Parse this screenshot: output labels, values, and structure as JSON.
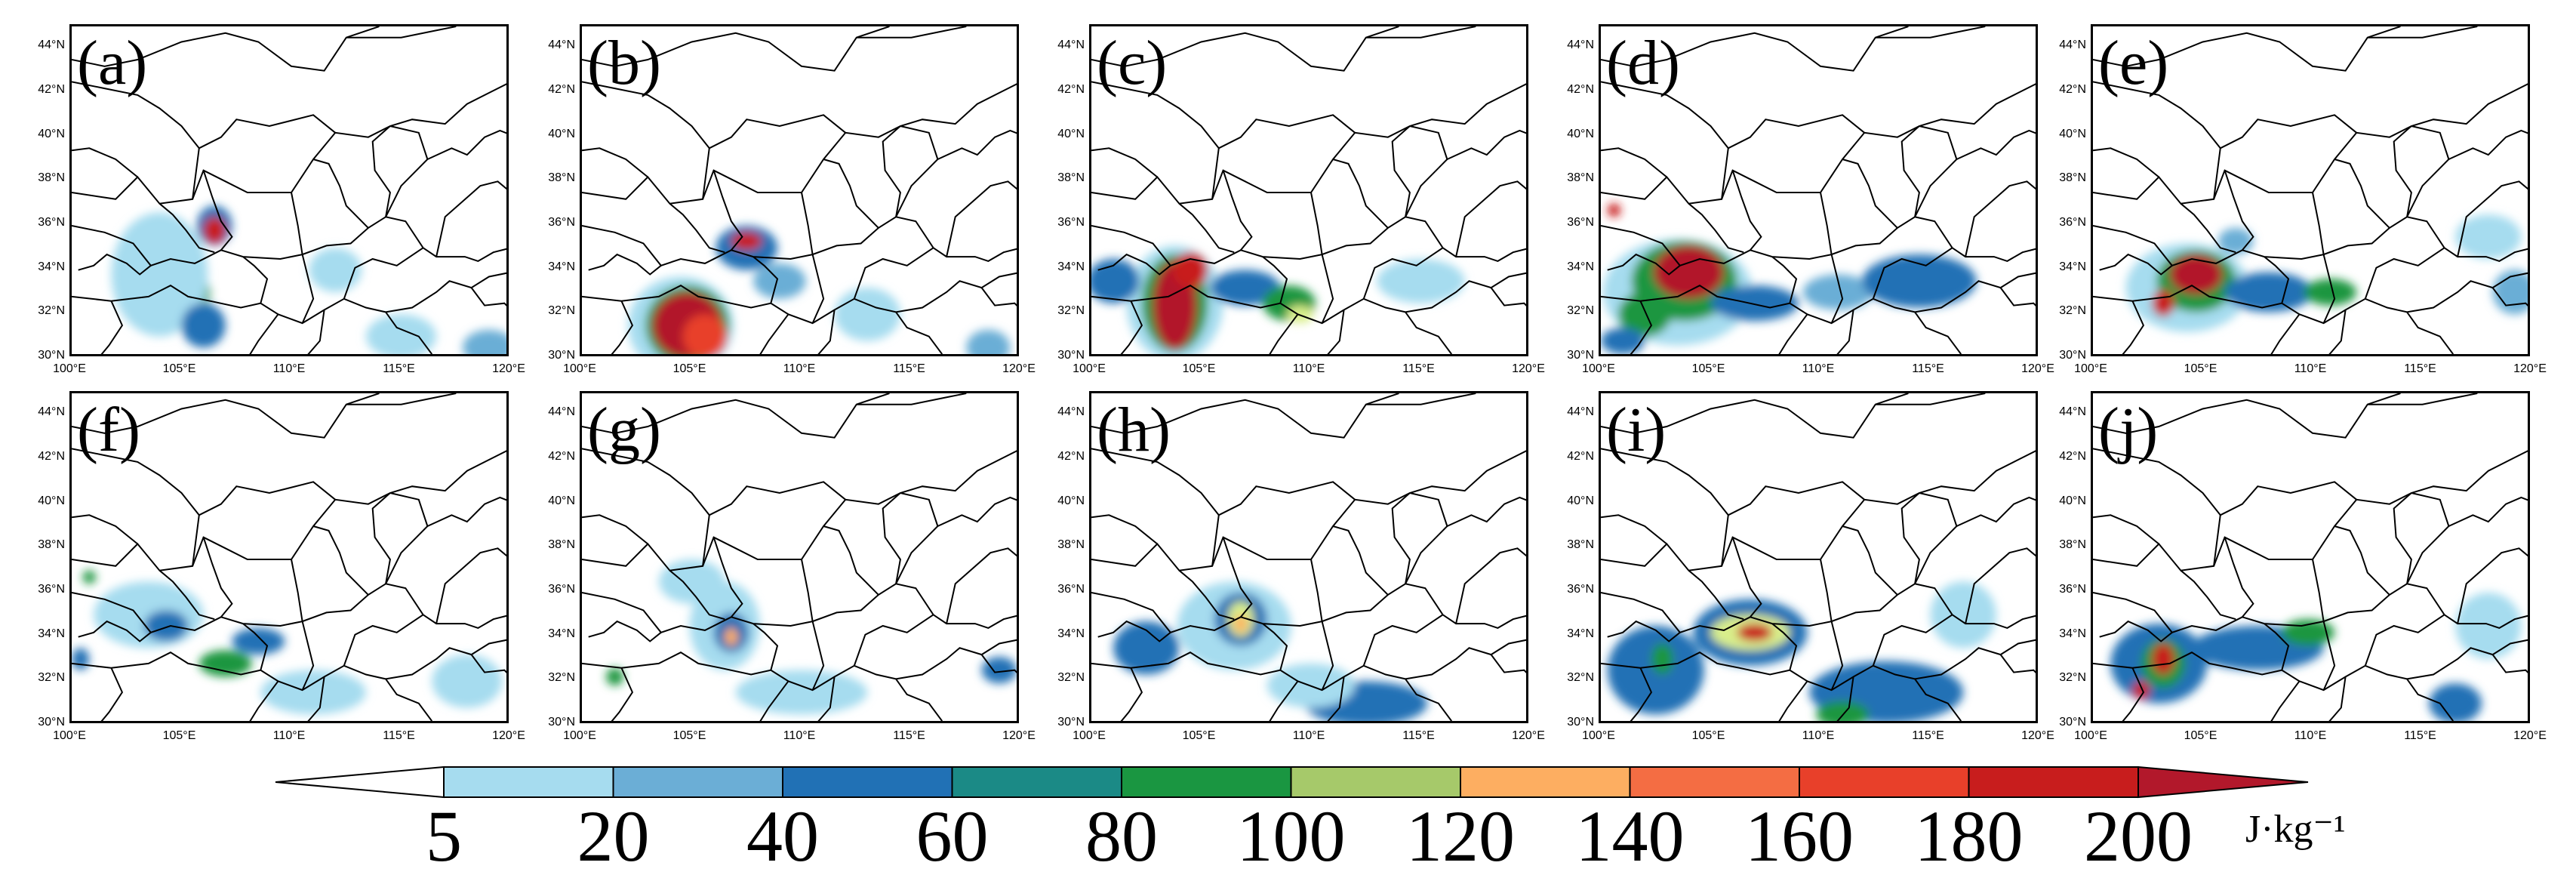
{
  "panels": [
    {
      "label": "(a)",
      "blobs": [
        [
          106.5,
          36,
          0.8,
          0.9,
          40,
          "#2171b5"
        ],
        [
          106.5,
          35.8,
          0.5,
          0.6,
          150,
          "#c81d1d"
        ],
        [
          105.5,
          33,
          0.8,
          0.8,
          60,
          "#1a9641"
        ],
        [
          105.5,
          33.3,
          0.4,
          0.4,
          120,
          "#fdae61"
        ],
        [
          104,
          33.8,
          2.2,
          2.8,
          5,
          "#a6dcef"
        ],
        [
          106,
          31.5,
          1,
          1,
          30,
          "#2171b5"
        ],
        [
          112,
          34,
          1.2,
          1,
          10,
          "#a6dcef"
        ],
        [
          115,
          31,
          1.6,
          1,
          8,
          "#a6dcef"
        ],
        [
          119,
          30.5,
          1.2,
          0.8,
          20,
          "#6baed6"
        ]
      ]
    },
    {
      "label": "(b)",
      "blobs": [
        [
          104.5,
          31.5,
          2.4,
          2.2,
          5,
          "#a6dcef"
        ],
        [
          104.8,
          31.5,
          1.9,
          1.8,
          60,
          "#1a9641"
        ],
        [
          104.8,
          31.5,
          1.6,
          1.5,
          180,
          "#b2182b"
        ],
        [
          105.6,
          31,
          1,
          1,
          200,
          "#e8402a"
        ],
        [
          107.5,
          35,
          1.4,
          1,
          60,
          "#2171b5"
        ],
        [
          107.5,
          35.3,
          0.7,
          0.4,
          150,
          "#c81d1d"
        ],
        [
          109,
          33.5,
          1.2,
          0.8,
          30,
          "#6baed6"
        ],
        [
          113,
          32,
          1.5,
          1.2,
          8,
          "#a6dcef"
        ],
        [
          118.5,
          30.5,
          1,
          0.8,
          20,
          "#6baed6"
        ]
      ]
    },
    {
      "label": "(c)",
      "blobs": [
        [
          103.8,
          32.5,
          2.2,
          2.6,
          5,
          "#a6dcef"
        ],
        [
          103.8,
          32.5,
          1.5,
          2.2,
          60,
          "#1a9641"
        ],
        [
          103.8,
          32.4,
          1,
          2,
          180,
          "#b2182b"
        ],
        [
          104.5,
          34,
          0.8,
          0.8,
          200,
          "#c81d1d"
        ],
        [
          107,
          33.2,
          1.6,
          0.8,
          40,
          "#2171b5"
        ],
        [
          109,
          32.5,
          1.2,
          0.8,
          80,
          "#1a9641"
        ],
        [
          109.5,
          32,
          0.6,
          0.4,
          120,
          "#d9ef8b"
        ],
        [
          101,
          33.5,
          1.2,
          1,
          30,
          "#2171b5"
        ],
        [
          115,
          33.5,
          2,
          1,
          8,
          "#a6dcef"
        ]
      ]
    },
    {
      "label": "(d)",
      "blobs": [
        [
          103.5,
          33,
          3.4,
          2.4,
          5,
          "#a6dcef"
        ],
        [
          103.8,
          33.5,
          2.4,
          1.8,
          60,
          "#1a9641"
        ],
        [
          104,
          33.9,
          1.6,
          1.2,
          180,
          "#b2182b"
        ],
        [
          102,
          32,
          1.2,
          1,
          100,
          "#1a9641"
        ],
        [
          107,
          32.5,
          2,
          0.8,
          30,
          "#2171b5"
        ],
        [
          110.8,
          33,
          1.6,
          0.8,
          20,
          "#6baed6"
        ],
        [
          114.5,
          33.5,
          2.6,
          1.2,
          40,
          "#2171b5"
        ],
        [
          101,
          30.8,
          1,
          0.6,
          60,
          "#2171b5"
        ],
        [
          100.6,
          36.7,
          0.3,
          0.3,
          150,
          "#c81d1d"
        ]
      ]
    },
    {
      "label": "(e)",
      "blobs": [
        [
          104.3,
          33.2,
          2.8,
          2,
          5,
          "#a6dcef"
        ],
        [
          104.7,
          33.5,
          1.8,
          1.4,
          60,
          "#1a9641"
        ],
        [
          104.7,
          33.8,
          1.2,
          0.9,
          180,
          "#b2182b"
        ],
        [
          103.2,
          32.5,
          0.5,
          0.6,
          150,
          "#c81d1d"
        ],
        [
          108,
          33,
          2,
          0.9,
          40,
          "#2171b5"
        ],
        [
          110.8,
          33,
          1.2,
          0.6,
          60,
          "#1a9641"
        ],
        [
          106.5,
          35.3,
          0.8,
          0.6,
          30,
          "#6baed6"
        ],
        [
          119.2,
          33,
          1,
          1,
          20,
          "#6baed6"
        ],
        [
          118,
          35.5,
          1.5,
          1,
          8,
          "#a6dcef"
        ]
      ]
    },
    {
      "label": "(f)",
      "blobs": [
        [
          103.5,
          35,
          2.5,
          1.5,
          5,
          "#a6dcef"
        ],
        [
          104.3,
          34.5,
          1,
          0.7,
          30,
          "#2171b5"
        ],
        [
          100.8,
          36.7,
          0.3,
          0.3,
          80,
          "#1a9641"
        ],
        [
          108.5,
          33.8,
          1.2,
          0.6,
          40,
          "#2171b5"
        ],
        [
          107,
          32.8,
          1.2,
          0.6,
          60,
          "#1a9641"
        ],
        [
          100.4,
          33,
          0.4,
          0.5,
          60,
          "#2171b5"
        ],
        [
          111,
          31.5,
          2.4,
          1,
          8,
          "#a6dcef"
        ],
        [
          118,
          32,
          1.6,
          1.2,
          8,
          "#a6dcef"
        ]
      ]
    },
    {
      "label": "(g)",
      "blobs": [
        [
          106.5,
          34.5,
          1.6,
          2,
          5,
          "#a6dcef"
        ],
        [
          106.8,
          34.2,
          0.8,
          0.9,
          40,
          "#2171b5"
        ],
        [
          106.8,
          34,
          0.3,
          0.4,
          150,
          "#fdae61"
        ],
        [
          101.5,
          32.2,
          0.4,
          0.4,
          60,
          "#1a9641"
        ],
        [
          110,
          31.5,
          3,
          1,
          10,
          "#a6dcef"
        ],
        [
          119,
          32.5,
          0.8,
          0.6,
          40,
          "#2171b5"
        ],
        [
          105,
          36.5,
          1.5,
          1,
          8,
          "#a6dcef"
        ]
      ]
    },
    {
      "label": "(h)",
      "blobs": [
        [
          106.5,
          34.5,
          2.6,
          2,
          5,
          "#a6dcef"
        ],
        [
          106.8,
          34.8,
          1.2,
          1.2,
          40,
          "#2171b5"
        ],
        [
          106.8,
          34.8,
          0.6,
          0.8,
          100,
          "#d9ef8b"
        ],
        [
          106.8,
          34.6,
          0.3,
          0.4,
          150,
          "#fdae61"
        ],
        [
          102.5,
          33.5,
          1.5,
          1.2,
          40,
          "#2171b5"
        ],
        [
          112.5,
          31,
          2.8,
          1,
          40,
          "#2171b5"
        ],
        [
          110,
          31.8,
          2,
          1,
          8,
          "#a6dcef"
        ]
      ]
    },
    {
      "label": "(i)",
      "blobs": [
        [
          102.5,
          32.5,
          2.2,
          2,
          30,
          "#2171b5"
        ],
        [
          102.8,
          33,
          0.5,
          0.7,
          100,
          "#1a9641"
        ],
        [
          106.8,
          34.2,
          2.6,
          1.5,
          40,
          "#2171b5"
        ],
        [
          106.8,
          34.2,
          1.8,
          0.8,
          100,
          "#d9ef8b"
        ],
        [
          107,
          34.2,
          0.8,
          0.4,
          150,
          "#c81d1d"
        ],
        [
          113,
          31.5,
          3.5,
          1.4,
          40,
          "#2171b5"
        ],
        [
          111,
          30.5,
          1.2,
          0.6,
          80,
          "#1a9641"
        ],
        [
          116.5,
          35,
          1.5,
          1.5,
          8,
          "#a6dcef"
        ]
      ]
    },
    {
      "label": "(j)",
      "blobs": [
        [
          103,
          32.8,
          2.2,
          1.8,
          30,
          "#2171b5"
        ],
        [
          103.2,
          32.8,
          1,
          1.1,
          80,
          "#1a9641"
        ],
        [
          103.2,
          33,
          0.5,
          0.7,
          150,
          "#c81d1d"
        ],
        [
          102.2,
          31.6,
          0.4,
          0.4,
          150,
          "#c81d1d"
        ],
        [
          107.5,
          33.5,
          3,
          1,
          30,
          "#2171b5"
        ],
        [
          109.8,
          34.2,
          1.2,
          0.6,
          80,
          "#1a9641"
        ],
        [
          116.5,
          31,
          1.2,
          0.9,
          40,
          "#2171b5"
        ],
        [
          118,
          34.5,
          1.5,
          1.5,
          8,
          "#a6dcef"
        ]
      ]
    }
  ],
  "axes": {
    "x_ticks": [
      "100°E",
      "105°E",
      "110°E",
      "115°E",
      "120°E"
    ],
    "x_values": [
      100,
      105,
      110,
      115,
      120
    ],
    "y_ticks": [
      "30°N",
      "32°N",
      "34°N",
      "36°N",
      "38°N",
      "40°N",
      "42°N",
      "44°N"
    ],
    "y_values": [
      30,
      32,
      34,
      36,
      38,
      40,
      42,
      44
    ],
    "lon_range": [
      100,
      120
    ],
    "lat_range": [
      30,
      45
    ]
  },
  "colorbar": {
    "labels": [
      "5",
      "20",
      "40",
      "60",
      "80",
      "100",
      "120",
      "140",
      "160",
      "180",
      "200"
    ],
    "colors": [
      "#a6dcef",
      "#6baed6",
      "#2171b5",
      "#1b8a86",
      "#1a9641",
      "#a6c96a",
      "#fdae61",
      "#f46d43",
      "#e8402a",
      "#c81d1d",
      "#b2182b"
    ],
    "under_color": "#ffffff",
    "over_color": "#b2182b",
    "unit": "J·kg⁻¹"
  }
}
